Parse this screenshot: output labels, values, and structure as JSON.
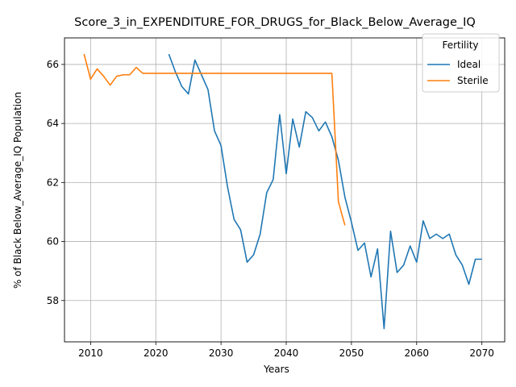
{
  "chart_data": {
    "type": "line",
    "title": "Score_3_in_EXPENDITURE_FOR_DRUGS_for_Black_Below_Average_IQ",
    "xlabel": "Years",
    "ylabel": "% of Black Below_Average_IQ Population",
    "xlim": [
      2006,
      2073.5
    ],
    "ylim": [
      56.6,
      66.9
    ],
    "xticks": [
      2010,
      2020,
      2030,
      2040,
      2050,
      2060,
      2070
    ],
    "yticks": [
      58,
      60,
      62,
      64,
      66
    ],
    "grid": true,
    "legend": {
      "title": "Fertility",
      "placement": "top-right"
    },
    "series": [
      {
        "name": "Ideal",
        "color": "#1f77b4",
        "x": [
          2022,
          2023,
          2024,
          2025,
          2026,
          2027,
          2028,
          2029,
          2030,
          2031,
          2032,
          2033,
          2034,
          2035,
          2036,
          2037,
          2038,
          2039,
          2040,
          2041,
          2042,
          2043,
          2044,
          2045,
          2046,
          2047,
          2048,
          2049,
          2050,
          2051,
          2052,
          2053,
          2054,
          2055,
          2056,
          2057,
          2058,
          2059,
          2060,
          2061,
          2062,
          2063,
          2064,
          2065,
          2066,
          2067,
          2068,
          2069,
          2070
        ],
        "y": [
          66.35,
          65.75,
          65.25,
          65.0,
          66.15,
          65.65,
          65.15,
          63.75,
          63.25,
          61.85,
          60.75,
          60.4,
          59.3,
          59.55,
          60.25,
          61.65,
          62.1,
          64.3,
          62.3,
          64.15,
          63.2,
          64.4,
          64.2,
          63.75,
          64.05,
          63.55,
          62.75,
          61.5,
          60.65,
          59.7,
          59.95,
          58.8,
          59.75,
          57.05,
          60.35,
          58.95,
          59.2,
          59.85,
          59.3,
          60.7,
          60.1,
          60.25,
          60.1,
          60.25,
          59.55,
          59.2,
          58.55,
          59.4,
          59.4
        ]
      },
      {
        "name": "Sterile",
        "color": "#ff7f0e",
        "x": [
          2009,
          2010,
          2011,
          2012,
          2013,
          2014,
          2015,
          2016,
          2017,
          2018,
          2019,
          2020,
          2021,
          2022,
          2023,
          2024,
          2025,
          2026,
          2027,
          2028,
          2029,
          2030,
          2031,
          2032,
          2033,
          2034,
          2035,
          2036,
          2037,
          2038,
          2039,
          2040,
          2041,
          2042,
          2043,
          2044,
          2045,
          2046,
          2047,
          2048,
          2049
        ],
        "y": [
          66.35,
          65.5,
          65.85,
          65.6,
          65.3,
          65.6,
          65.65,
          65.65,
          65.9,
          65.7,
          65.7,
          65.7,
          65.7,
          65.7,
          65.7,
          65.7,
          65.7,
          65.7,
          65.7,
          65.7,
          65.7,
          65.7,
          65.7,
          65.7,
          65.7,
          65.7,
          65.7,
          65.7,
          65.7,
          65.7,
          65.7,
          65.7,
          65.7,
          65.7,
          65.7,
          65.7,
          65.7,
          65.7,
          65.7,
          61.35,
          60.55
        ]
      }
    ]
  }
}
